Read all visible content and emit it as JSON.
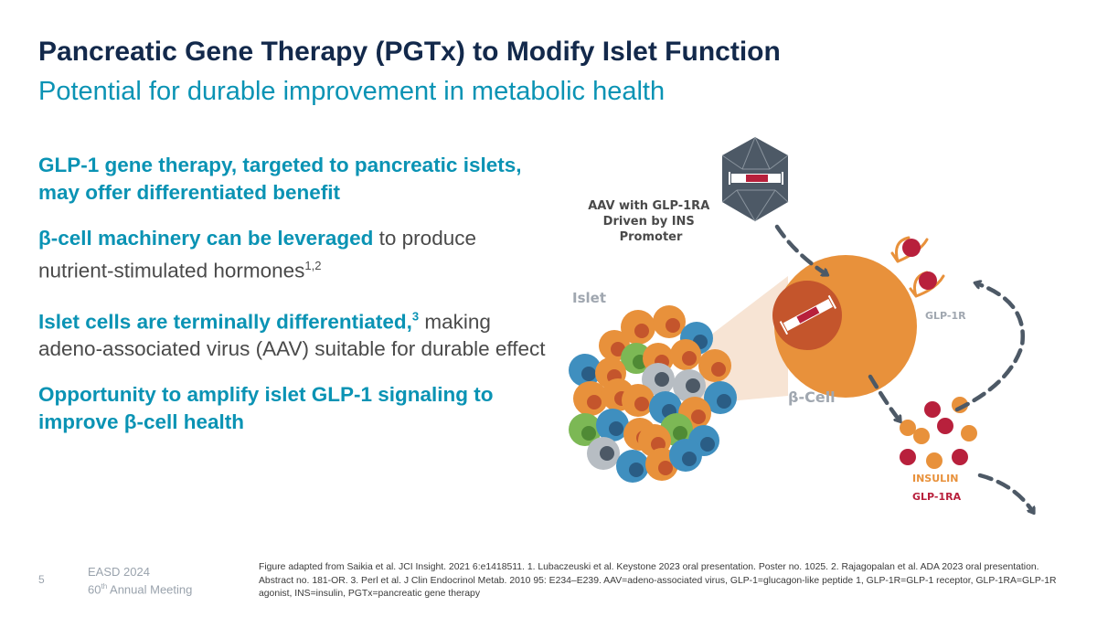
{
  "slide": {
    "title": "Pancreatic Gene Therapy (PGTx) to Modify Islet Function",
    "subtitle": "Potential for durable improvement in metabolic health"
  },
  "bullets": [
    {
      "highlight": "GLP-1 gene therapy, targeted to pancreatic islets, may offer differentiated benefit",
      "sup": "",
      "rest": "",
      "rest_sup": ""
    },
    {
      "highlight": "β-cell machinery can be leveraged",
      "sup": "",
      "rest": " to produce nutrient-stimulated hormones",
      "rest_sup": "1,2"
    },
    {
      "highlight": "Islet cells are terminally differentiated,",
      "sup": "3",
      "rest": " making adeno-associated virus (AAV) suitable for durable effect",
      "rest_sup": ""
    },
    {
      "highlight": "Opportunity to amplify islet GLP-1 signaling to improve β-cell health",
      "sup": "",
      "rest": "",
      "rest_sup": ""
    }
  ],
  "diagram": {
    "aav_label": [
      "AAV with GLP-1RA",
      "Driven by INS",
      "Promoter"
    ],
    "islet_label": "Islet",
    "beta_cell_label": "β-Cell",
    "receptor_label": "GLP-1R",
    "insulin_label": "INSULIN",
    "glp1ra_label": "GLP-1RA",
    "colors": {
      "orange": "#e8913b",
      "crimson": "#b8203c",
      "blue": "#3f8fbf",
      "green": "#7cb855",
      "gray": "#b7bdc3",
      "dark_slate": "#4d5966",
      "label_gray": "#a0a7b0",
      "dark_label": "#4a4a4a"
    }
  },
  "footer": {
    "page_number": "5",
    "conference": "EASD 2024",
    "meeting_ordinal": "60",
    "meeting_ordinal_sup": "th",
    "meeting_rest": " Annual Meeting",
    "footnote": "Figure adapted from Saikia et al. JCI Insight. 2021 6:e1418511. 1. Lubaczeuski et al. Keystone 2023 oral presentation. Poster no. 1025. 2. Rajagopalan et al. ADA 2023 oral presentation. Abstract no. 181-OR. 3. Perl et al. J Clin Endocrinol Metab. 2010 95: E234–E239.  AAV=adeno-associated virus, GLP-1=glucagon-like peptide 1, GLP-1R=GLP-1 receptor, GLP-1RA=GLP-1R agonist, INS=insulin, PGTx=pancreatic gene therapy"
  }
}
